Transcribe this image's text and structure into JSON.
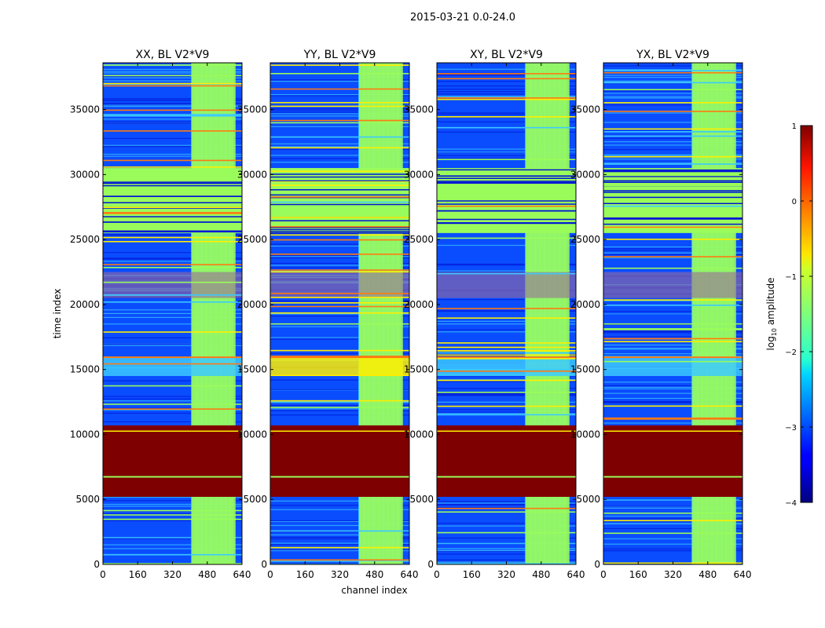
{
  "suptitle": "2015-03-21 0.0-24.0",
  "colors": {
    "deep_red": "#7f0000",
    "green": "#9afc5a",
    "blue_dark": "#0015d6",
    "blue_mid": "#0a4dff",
    "cyan": "#3ccaff",
    "yellow": "#ffee00",
    "orange": "#ff7a10",
    "purple": "#9a6a9a"
  },
  "chart_data": [
    {
      "type": "heatmap",
      "title": "XX, BL V2*V9",
      "xlabel": "",
      "ylabel": "time index",
      "xlim": [
        0,
        640
      ],
      "ylim": [
        0,
        38600
      ],
      "xticks": [
        "0",
        "160",
        "320",
        "480",
        "640"
      ],
      "yticks": [
        "0",
        "5000",
        "10000",
        "15000",
        "20000",
        "25000",
        "30000",
        "35000"
      ],
      "active_channel_range": [
        405,
        600
      ],
      "saturated_time_range": [
        5200,
        10700
      ],
      "flat_time_range": [
        25500,
        30500
      ],
      "bright_time_range": [
        14500,
        16000
      ],
      "noisy_time_range": [
        20500,
        22500
      ]
    },
    {
      "type": "heatmap",
      "title": "YY, BL V2*V9",
      "xlabel": "channel index",
      "ylabel": "",
      "xlim": [
        0,
        640
      ],
      "ylim": [
        0,
        38600
      ],
      "xticks": [
        "0",
        "160",
        "320",
        "480",
        "640"
      ],
      "yticks": [
        "0",
        "5000",
        "10000",
        "15000",
        "20000",
        "25000",
        "30000",
        "35000"
      ],
      "active_channel_range": [
        405,
        600
      ],
      "saturated_time_range": [
        5200,
        10700
      ],
      "flat_time_range": [
        25500,
        30500
      ],
      "bright_time_range": [
        14500,
        16000
      ],
      "noisy_time_range": [
        20500,
        22500
      ]
    },
    {
      "type": "heatmap",
      "title": "XY, BL V2*V9",
      "xlabel": "",
      "ylabel": "",
      "xlim": [
        0,
        640
      ],
      "ylim": [
        0,
        38600
      ],
      "xticks": [
        "0",
        "160",
        "320",
        "480",
        "640"
      ],
      "yticks": [
        "0",
        "5000",
        "10000",
        "15000",
        "20000",
        "25000",
        "30000",
        "35000"
      ],
      "active_channel_range": [
        405,
        600
      ],
      "saturated_time_range": [
        5200,
        10700
      ],
      "flat_time_range": [
        25500,
        30500
      ],
      "bright_time_range": [
        14500,
        16000
      ],
      "noisy_time_range": [
        20500,
        22500
      ]
    },
    {
      "type": "heatmap",
      "title": "YX, BL V2*V9",
      "xlabel": "",
      "ylabel": "",
      "xlim": [
        0,
        640
      ],
      "ylim": [
        0,
        38600
      ],
      "xticks": [
        "0",
        "160",
        "320",
        "480",
        "640"
      ],
      "yticks": [
        "0",
        "5000",
        "10000",
        "15000",
        "20000",
        "25000",
        "30000",
        "35000"
      ],
      "active_channel_range": [
        405,
        600
      ],
      "saturated_time_range": [
        5200,
        10700
      ],
      "flat_time_range": [
        25500,
        30500
      ],
      "bright_time_range": [
        14500,
        16000
      ],
      "noisy_time_range": [
        20500,
        22500
      ]
    }
  ],
  "colorbar": {
    "label": "log10 amplitude",
    "label_main": "log",
    "label_sub": "10",
    "label_tail": " amplitude",
    "range": [
      -4,
      1
    ],
    "ticks": [
      "1",
      "0",
      "−1",
      "−2",
      "−3",
      "−4"
    ],
    "scale": "jet"
  }
}
